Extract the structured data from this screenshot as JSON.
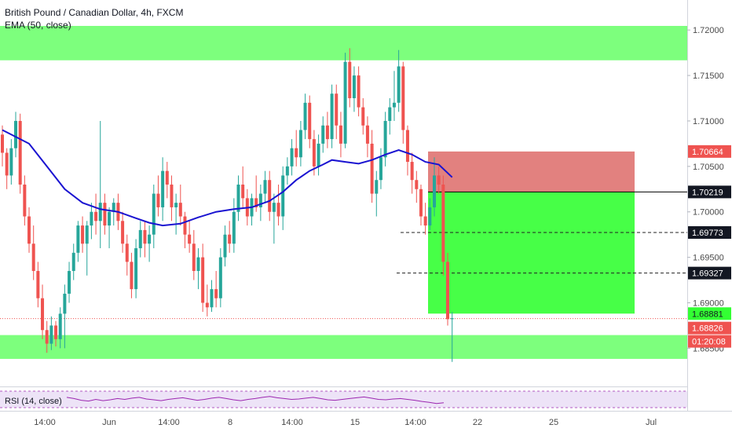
{
  "legend": {
    "title": "British Pound / Canadian Dollar, 4h, FXCM",
    "indicator": "EMA (50, close)"
  },
  "rsi": {
    "label": "RSI (14, close)"
  },
  "colors": {
    "bull": "#26a69a",
    "bear": "#ef5350",
    "ema": "#1a13d1",
    "zone": "#5cff5c",
    "stop": "#e07a78",
    "target": "#33ff33",
    "rsi_line": "#9c27b0",
    "rsi_band": "#ede3f7"
  },
  "chart_data": {
    "type": "candlestick",
    "title": "British Pound / Canadian Dollar, 4h, FXCM",
    "y_ticks": [
      "1.72000",
      "1.71500",
      "1.71000",
      "1.70500",
      "1.70000",
      "1.69500",
      "1.69000",
      "1.68500"
    ],
    "ylim": [
      1.6808,
      1.7233
    ],
    "x_ticks": [
      "14:00",
      "Jun",
      "14:00",
      "8",
      "14:00",
      "15",
      "14:00",
      "22",
      "25",
      "Jul"
    ],
    "candles": [
      [
        1.7085,
        1.7095,
        1.705,
        1.7065
      ],
      [
        1.7065,
        1.707,
        1.7025,
        1.704
      ],
      [
        1.704,
        1.708,
        1.703,
        1.707
      ],
      [
        1.707,
        1.711,
        1.706,
        1.71
      ],
      [
        1.71,
        1.7108,
        1.702,
        1.703
      ],
      [
        1.703,
        1.704,
        1.6985,
        1.6995
      ],
      [
        1.6995,
        1.7005,
        1.6955,
        1.6965
      ],
      [
        1.6965,
        1.6985,
        1.6925,
        1.6935
      ],
      [
        1.6935,
        1.6945,
        1.6895,
        1.6905
      ],
      [
        1.6905,
        1.692,
        1.686,
        1.687
      ],
      [
        1.687,
        1.688,
        1.6845,
        1.6855
      ],
      [
        1.6855,
        1.6885,
        1.6848,
        1.6875
      ],
      [
        1.6875,
        1.688,
        1.6852,
        1.686
      ],
      [
        1.686,
        1.6895,
        1.685,
        1.6888
      ],
      [
        1.6888,
        1.692,
        1.685,
        1.691
      ],
      [
        1.691,
        1.6945,
        1.69,
        1.6935
      ],
      [
        1.6935,
        1.6965,
        1.6925,
        1.6955
      ],
      [
        1.6955,
        1.699,
        1.6945,
        1.6985
      ],
      [
        1.6985,
        1.6995,
        1.6955,
        1.6965
      ],
      [
        1.6965,
        1.699,
        1.693,
        1.6985
      ],
      [
        1.6985,
        1.701,
        1.697,
        1.7
      ],
      [
        1.7,
        1.702,
        1.6975,
        1.699
      ],
      [
        1.699,
        1.71,
        1.696,
        1.701
      ],
      [
        1.701,
        1.702,
        1.6975,
        1.6985
      ],
      [
        1.6985,
        1.7005,
        1.696,
        1.7
      ],
      [
        1.7,
        1.7015,
        1.6985,
        1.701
      ],
      [
        1.701,
        1.702,
        1.698,
        1.699
      ],
      [
        1.699,
        1.7,
        1.6955,
        1.6965
      ],
      [
        1.6965,
        1.6975,
        1.693,
        1.6945
      ],
      [
        1.6945,
        1.6955,
        1.6905,
        1.6915
      ],
      [
        1.6915,
        1.697,
        1.6905,
        1.696
      ],
      [
        1.696,
        1.699,
        1.695,
        1.698
      ],
      [
        1.698,
        1.699,
        1.695,
        1.6965
      ],
      [
        1.6965,
        1.6985,
        1.6945,
        1.6975
      ],
      [
        1.6975,
        1.703,
        1.696,
        1.702
      ],
      [
        1.702,
        1.704,
        1.6995,
        1.7005
      ],
      [
        1.7005,
        1.706,
        1.699,
        1.7045
      ],
      [
        1.7045,
        1.7055,
        1.7015,
        1.703
      ],
      [
        1.703,
        1.704,
        1.699,
        1.7005
      ],
      [
        1.7005,
        1.702,
        1.6975,
        1.701
      ],
      [
        1.701,
        1.703,
        1.6985,
        1.6995
      ],
      [
        1.6995,
        1.7,
        1.696,
        1.6975
      ],
      [
        1.6975,
        1.699,
        1.6955,
        1.6965
      ],
      [
        1.6965,
        1.698,
        1.6925,
        1.6935
      ],
      [
        1.6935,
        1.696,
        1.6915,
        1.695
      ],
      [
        1.695,
        1.6965,
        1.689,
        1.69
      ],
      [
        1.69,
        1.692,
        1.6885,
        1.6895
      ],
      [
        1.6895,
        1.6925,
        1.689,
        1.6915
      ],
      [
        1.6915,
        1.6935,
        1.6895,
        1.6905
      ],
      [
        1.6905,
        1.696,
        1.6895,
        1.695
      ],
      [
        1.695,
        1.6985,
        1.694,
        1.6975
      ],
      [
        1.6975,
        1.699,
        1.6955,
        1.6965
      ],
      [
        1.6965,
        1.7015,
        1.6955,
        1.7
      ],
      [
        1.7,
        1.704,
        1.699,
        1.703
      ],
      [
        1.703,
        1.705,
        1.7005,
        1.7015
      ],
      [
        1.7015,
        1.7025,
        1.6985,
        1.6995
      ],
      [
        1.6995,
        1.702,
        1.6985,
        1.7015
      ],
      [
        1.7015,
        1.704,
        1.7,
        1.7005
      ],
      [
        1.7005,
        1.703,
        1.699,
        1.702
      ],
      [
        1.702,
        1.7045,
        1.701,
        1.7035
      ],
      [
        1.7035,
        1.7045,
        1.699,
        1.7
      ],
      [
        1.7,
        1.702,
        1.6965,
        1.701
      ],
      [
        1.701,
        1.703,
        1.6985,
        1.6995
      ],
      [
        1.6995,
        1.705,
        1.698,
        1.704
      ],
      [
        1.704,
        1.706,
        1.703,
        1.705
      ],
      [
        1.705,
        1.708,
        1.704,
        1.707
      ],
      [
        1.707,
        1.709,
        1.705,
        1.706
      ],
      [
        1.706,
        1.71,
        1.705,
        1.709
      ],
      [
        1.709,
        1.713,
        1.708,
        1.712
      ],
      [
        1.712,
        1.7128,
        1.707,
        1.708
      ],
      [
        1.708,
        1.709,
        1.704,
        1.705
      ],
      [
        1.705,
        1.7085,
        1.704,
        1.7075
      ],
      [
        1.7075,
        1.7105,
        1.7065,
        1.7095
      ],
      [
        1.7095,
        1.711,
        1.707,
        1.708
      ],
      [
        1.708,
        1.714,
        1.707,
        1.713
      ],
      [
        1.713,
        1.714,
        1.708,
        1.7095
      ],
      [
        1.7095,
        1.711,
        1.706,
        1.7075
      ],
      [
        1.7075,
        1.7175,
        1.707,
        1.7165
      ],
      [
        1.7165,
        1.718,
        1.7115,
        1.7125
      ],
      [
        1.7125,
        1.716,
        1.711,
        1.715
      ],
      [
        1.715,
        1.716,
        1.7105,
        1.7115
      ],
      [
        1.7115,
        1.7125,
        1.7085,
        1.7095
      ],
      [
        1.7095,
        1.7105,
        1.706,
        1.7075
      ],
      [
        1.7075,
        1.709,
        1.701,
        1.702
      ],
      [
        1.702,
        1.7045,
        1.6995,
        1.7035
      ],
      [
        1.7035,
        1.707,
        1.7025,
        1.706
      ],
      [
        1.706,
        1.711,
        1.705,
        1.71
      ],
      [
        1.71,
        1.7125,
        1.7085,
        1.7115
      ],
      [
        1.7115,
        1.7155,
        1.71,
        1.712
      ],
      [
        1.712,
        1.7178,
        1.711,
        1.716
      ],
      [
        1.716,
        1.7165,
        1.7075,
        1.709
      ],
      [
        1.709,
        1.7095,
        1.704,
        1.7055
      ],
      [
        1.7055,
        1.7065,
        1.702,
        1.7035
      ],
      [
        1.7035,
        1.7045,
        1.701,
        1.7025
      ],
      [
        1.7025,
        1.703,
        1.6985,
        1.6995
      ],
      [
        1.6995,
        1.701,
        1.6975,
        1.6985
      ],
      [
        1.6985,
        1.7015,
        1.698,
        1.7005
      ],
      [
        1.7005,
        1.706,
        1.6995,
        1.704
      ],
      [
        1.704,
        1.705,
        1.702,
        1.703
      ],
      [
        1.703,
        1.704,
        1.693,
        1.6945
      ],
      [
        1.6945,
        1.6955,
        1.6875,
        1.6882
      ],
      [
        1.6882,
        1.689,
        1.6835,
        1.6883
      ]
    ],
    "ema50": [
      [
        0,
        1.709
      ],
      [
        6,
        1.7075
      ],
      [
        10,
        1.705
      ],
      [
        14,
        1.7025
      ],
      [
        18,
        1.701
      ],
      [
        22,
        1.7003
      ],
      [
        26,
        1.7
      ],
      [
        30,
        1.6993
      ],
      [
        33,
        1.6988
      ],
      [
        36,
        1.6985
      ],
      [
        40,
        1.6987
      ],
      [
        44,
        1.6994
      ],
      [
        48,
        1.7
      ],
      [
        52,
        1.7003
      ],
      [
        56,
        1.7005
      ],
      [
        60,
        1.7012
      ],
      [
        63,
        1.7022
      ],
      [
        66,
        1.7035
      ],
      [
        69,
        1.7045
      ],
      [
        72,
        1.7052
      ],
      [
        74,
        1.7057
      ],
      [
        77,
        1.7055
      ],
      [
        80,
        1.7053
      ],
      [
        83,
        1.7057
      ],
      [
        86,
        1.7063
      ],
      [
        89,
        1.7068
      ],
      [
        92,
        1.7063
      ],
      [
        95,
        1.7055
      ],
      [
        98,
        1.7052
      ],
      [
        101,
        1.7038
      ]
    ],
    "zones": [
      [
        1.71667,
        1.72045
      ],
      [
        1.68383,
        1.68645
      ]
    ],
    "position": {
      "entry": 1.70219,
      "stop": 1.70664,
      "target": 1.68881,
      "right_date": "25"
    },
    "levels": [
      1.69773,
      1.69327
    ],
    "price_labels": [
      {
        "value": 1.70664,
        "text": "1.70664",
        "kind": "stop"
      },
      {
        "value": 1.70219,
        "text": "1.70219",
        "kind": "entry"
      },
      {
        "value": 1.69773,
        "text": "1.69773",
        "kind": "level"
      },
      {
        "value": 1.69327,
        "text": "1.69327",
        "kind": "level"
      },
      {
        "value": 1.68881,
        "text": "1.68881",
        "kind": "target"
      },
      {
        "value": 1.68826,
        "text": "1.68826",
        "kind": "last"
      },
      {
        "value": 1.6874,
        "text": "01:20:08",
        "kind": "timer"
      }
    ],
    "rsi_values": [
      55,
      52,
      48,
      46,
      50,
      47,
      49,
      52,
      50,
      53,
      55,
      51,
      49,
      47,
      50,
      52,
      54,
      51,
      48,
      50,
      53,
      55,
      52,
      49,
      47,
      50,
      52,
      55,
      57,
      54,
      52,
      50,
      51,
      53,
      55,
      52,
      49,
      48,
      50,
      52,
      54,
      56,
      53,
      50,
      49,
      51,
      52,
      50,
      48,
      45,
      43,
      40,
      42
    ]
  }
}
